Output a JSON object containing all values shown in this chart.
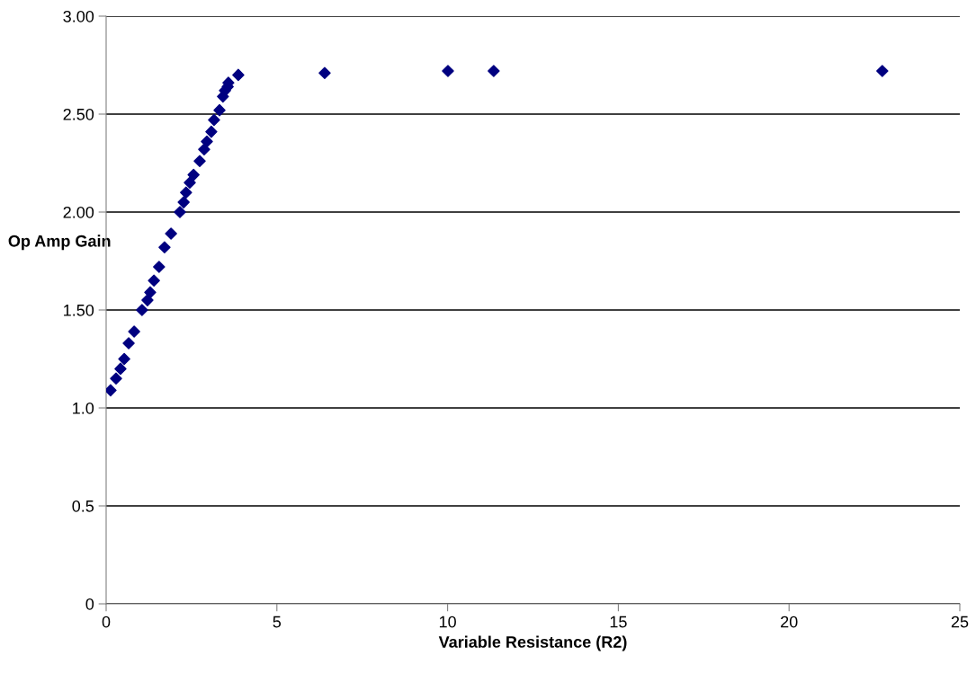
{
  "chart_data": {
    "type": "scatter",
    "xlabel": "Variable Resistance (R2)",
    "ylabel": "Op Amp Gain",
    "x": [
      0.13,
      0.29,
      0.42,
      0.53,
      0.66,
      0.82,
      1.05,
      1.21,
      1.29,
      1.4,
      1.55,
      1.71,
      1.9,
      2.16,
      2.27,
      2.34,
      2.45,
      2.56,
      2.74,
      2.87,
      2.95,
      3.08,
      3.16,
      3.32,
      3.42,
      3.48,
      3.56,
      3.58,
      3.87,
      6.4,
      10.01,
      11.35,
      22.73
    ],
    "series": [
      {
        "color": "#000080",
        "values": [
          1.09,
          1.15,
          1.2,
          1.25,
          1.33,
          1.39,
          1.5,
          1.55,
          1.59,
          1.65,
          1.72,
          1.82,
          1.89,
          2.0,
          2.05,
          2.1,
          2.15,
          2.19,
          2.26,
          2.32,
          2.36,
          2.41,
          2.47,
          2.52,
          2.59,
          2.62,
          2.64,
          2.66,
          2.7,
          2.71,
          2.72,
          2.72,
          2.72
        ]
      }
    ],
    "xlim": [
      0,
      25
    ],
    "xticks": [
      0,
      5,
      10,
      15,
      20,
      25
    ],
    "ylim": [
      0,
      3
    ],
    "yticks": [
      0,
      {
        "value": 0.5,
        "label": "0.5"
      },
      {
        "value": 1,
        "label": "1.0"
      },
      {
        "value": 1.5,
        "label": "1.50"
      },
      {
        "value": 2,
        "label": "2.00"
      },
      {
        "value": 2.5,
        "label": "2.50"
      },
      {
        "value": 3,
        "label": "3.00"
      }
    ],
    "grid": "y",
    "marker": "diamond"
  }
}
